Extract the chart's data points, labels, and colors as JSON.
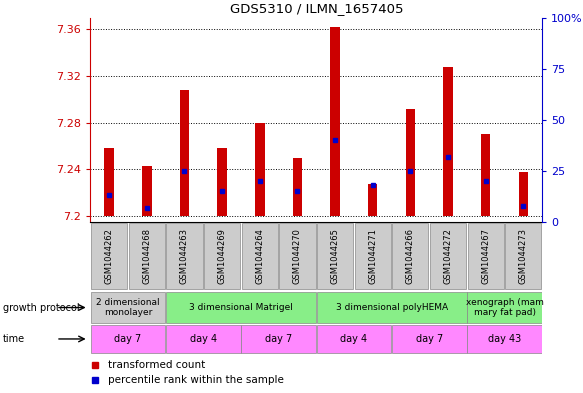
{
  "title": "GDS5310 / ILMN_1657405",
  "samples": [
    "GSM1044262",
    "GSM1044268",
    "GSM1044263",
    "GSM1044269",
    "GSM1044264",
    "GSM1044270",
    "GSM1044265",
    "GSM1044271",
    "GSM1044266",
    "GSM1044272",
    "GSM1044267",
    "GSM1044273"
  ],
  "transformed_counts": [
    7.258,
    7.243,
    7.308,
    7.258,
    7.28,
    7.25,
    7.362,
    7.228,
    7.292,
    7.328,
    7.27,
    7.238
  ],
  "percentile_ranks": [
    13,
    7,
    25,
    15,
    20,
    15,
    40,
    18,
    25,
    32,
    20,
    8
  ],
  "bar_base": 7.2,
  "ylim_left": [
    7.195,
    7.37
  ],
  "ylim_right": [
    0,
    100
  ],
  "yticks_left": [
    7.2,
    7.24,
    7.28,
    7.32,
    7.36
  ],
  "ytick_labels_left": [
    "7.2",
    "7.24",
    "7.28",
    "7.32",
    "7.36"
  ],
  "yticks_right": [
    0,
    25,
    50,
    75,
    100
  ],
  "ytick_labels_right": [
    "0",
    "25",
    "50",
    "75",
    "100%"
  ],
  "bar_color": "#cc0000",
  "percentile_color": "#0000cc",
  "left_axis_color": "#cc0000",
  "right_axis_color": "#0000cc",
  "bar_width": 0.25,
  "gp_groups": [
    {
      "label": "2 dimensional\nmonolayer",
      "start": 0,
      "end": 2,
      "color": "#cccccc"
    },
    {
      "label": "3 dimensional Matrigel",
      "start": 2,
      "end": 6,
      "color": "#88ee88"
    },
    {
      "label": "3 dimensional polyHEMA",
      "start": 6,
      "end": 10,
      "color": "#88ee88"
    },
    {
      "label": "xenograph (mam\nmary fat pad)",
      "start": 10,
      "end": 12,
      "color": "#88ee88"
    }
  ],
  "time_groups": [
    {
      "label": "day 7",
      "start": 0,
      "end": 2,
      "color": "#ff88ff"
    },
    {
      "label": "day 4",
      "start": 2,
      "end": 4,
      "color": "#ff88ff"
    },
    {
      "label": "day 7",
      "start": 4,
      "end": 6,
      "color": "#ff88ff"
    },
    {
      "label": "day 4",
      "start": 6,
      "end": 8,
      "color": "#ff88ff"
    },
    {
      "label": "day 7",
      "start": 8,
      "end": 10,
      "color": "#ff88ff"
    },
    {
      "label": "day 43",
      "start": 10,
      "end": 12,
      "color": "#ff88ff"
    }
  ],
  "sample_bg_color": "#cccccc",
  "legend_items": [
    {
      "label": "transformed count",
      "color": "#cc0000",
      "marker": "s"
    },
    {
      "label": "percentile rank within the sample",
      "color": "#0000cc",
      "marker": "s"
    }
  ]
}
